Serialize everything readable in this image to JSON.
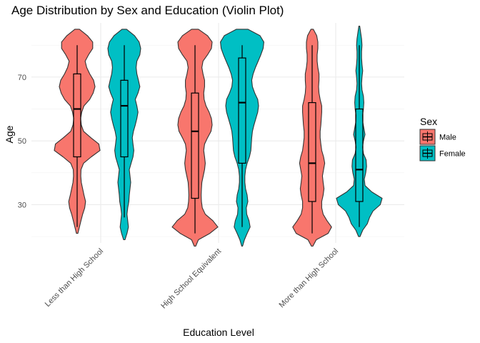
{
  "chart_data": {
    "type": "violin",
    "title": "Age Distribution by Sex and Education (Violin Plot)",
    "xlabel": "Education Level",
    "ylabel": "Age",
    "categories": [
      "Less than High School",
      "High School Equivalent",
      "More than High School"
    ],
    "y_ticks": [
      30,
      50,
      70
    ],
    "y_range": [
      18,
      87
    ],
    "grid": true,
    "legend": {
      "title": "Sex",
      "position": "right",
      "entries": [
        {
          "label": "Male",
          "color": "#F8766D"
        },
        {
          "label": "Female",
          "color": "#00BFC4"
        }
      ]
    },
    "series": [
      {
        "name": "Male",
        "color": "#F8766D",
        "violins": [
          {
            "category": "Less than High School",
            "box": {
              "min": 23,
              "q1": 45,
              "median": 60,
              "q3": 71,
              "max": 80
            },
            "density": [
              [
                21,
                0.03
              ],
              [
                23,
                0.1
              ],
              [
                25,
                0.17
              ],
              [
                27,
                0.24
              ],
              [
                29,
                0.33
              ],
              [
                31,
                0.37
              ],
              [
                33,
                0.3
              ],
              [
                35,
                0.24
              ],
              [
                37,
                0.18
              ],
              [
                39,
                0.16
              ],
              [
                41,
                0.17
              ],
              [
                43,
                0.28
              ],
              [
                45,
                0.62
              ],
              [
                47,
                1.0
              ],
              [
                49,
                0.95
              ],
              [
                51,
                0.6
              ],
              [
                53,
                0.28
              ],
              [
                55,
                0.18
              ],
              [
                57,
                0.15
              ],
              [
                59,
                0.2
              ],
              [
                61,
                0.3
              ],
              [
                63,
                0.55
              ],
              [
                65,
                0.7
              ],
              [
                67,
                0.78
              ],
              [
                69,
                0.72
              ],
              [
                71,
                0.55
              ],
              [
                73,
                0.42
              ],
              [
                75,
                0.35
              ],
              [
                77,
                0.5
              ],
              [
                79,
                0.68
              ],
              [
                81,
                0.68
              ],
              [
                83,
                0.45
              ],
              [
                85,
                0.1
              ]
            ]
          },
          {
            "category": "High School Equivalent",
            "box": {
              "min": 21,
              "q1": 32,
              "median": 53,
              "q3": 65,
              "max": 80
            },
            "density": [
              [
                17,
                0.03
              ],
              [
                19,
                0.15
              ],
              [
                21,
                0.65
              ],
              [
                23,
                1.0
              ],
              [
                25,
                0.78
              ],
              [
                27,
                0.45
              ],
              [
                29,
                0.32
              ],
              [
                31,
                0.28
              ],
              [
                33,
                0.27
              ],
              [
                35,
                0.28
              ],
              [
                37,
                0.3
              ],
              [
                39,
                0.36
              ],
              [
                41,
                0.42
              ],
              [
                43,
                0.45
              ],
              [
                45,
                0.42
              ],
              [
                47,
                0.38
              ],
              [
                49,
                0.42
              ],
              [
                51,
                0.55
              ],
              [
                53,
                0.7
              ],
              [
                55,
                0.75
              ],
              [
                57,
                0.72
              ],
              [
                59,
                0.62
              ],
              [
                61,
                0.48
              ],
              [
                63,
                0.4
              ],
              [
                65,
                0.38
              ],
              [
                67,
                0.42
              ],
              [
                69,
                0.42
              ],
              [
                71,
                0.35
              ],
              [
                73,
                0.3
              ],
              [
                75,
                0.35
              ],
              [
                77,
                0.55
              ],
              [
                79,
                0.72
              ],
              [
                81,
                0.75
              ],
              [
                83,
                0.55
              ],
              [
                85,
                0.15
              ]
            ]
          },
          {
            "category": "More than High School",
            "box": {
              "min": 21,
              "q1": 31,
              "median": 43,
              "q3": 62,
              "max": 80
            },
            "density": [
              [
                17,
                0.03
              ],
              [
                19,
                0.18
              ],
              [
                21,
                0.7
              ],
              [
                23,
                0.85
              ],
              [
                25,
                0.65
              ],
              [
                27,
                0.48
              ],
              [
                29,
                0.42
              ],
              [
                31,
                0.42
              ],
              [
                33,
                0.48
              ],
              [
                35,
                0.52
              ],
              [
                37,
                0.48
              ],
              [
                39,
                0.45
              ],
              [
                41,
                0.5
              ],
              [
                43,
                0.55
              ],
              [
                45,
                0.5
              ],
              [
                47,
                0.42
              ],
              [
                49,
                0.38
              ],
              [
                51,
                0.35
              ],
              [
                53,
                0.35
              ],
              [
                55,
                0.38
              ],
              [
                57,
                0.4
              ],
              [
                59,
                0.42
              ],
              [
                61,
                0.42
              ],
              [
                63,
                0.35
              ],
              [
                65,
                0.3
              ],
              [
                67,
                0.28
              ],
              [
                69,
                0.3
              ],
              [
                71,
                0.3
              ],
              [
                73,
                0.25
              ],
              [
                75,
                0.22
              ],
              [
                77,
                0.22
              ],
              [
                79,
                0.25
              ],
              [
                81,
                0.25
              ],
              [
                83,
                0.2
              ],
              [
                85,
                0.05
              ]
            ]
          }
        ]
      },
      {
        "name": "Female",
        "color": "#00BFC4",
        "violins": [
          {
            "category": "Less than High School",
            "box": {
              "min": 26,
              "q1": 45,
              "median": 61,
              "q3": 69,
              "max": 80
            },
            "density": [
              [
                19,
                0.03
              ],
              [
                21,
                0.12
              ],
              [
                23,
                0.18
              ],
              [
                25,
                0.15
              ],
              [
                27,
                0.12
              ],
              [
                29,
                0.15
              ],
              [
                31,
                0.2
              ],
              [
                33,
                0.22
              ],
              [
                35,
                0.25
              ],
              [
                37,
                0.28
              ],
              [
                39,
                0.25
              ],
              [
                41,
                0.22
              ],
              [
                43,
                0.3
              ],
              [
                45,
                0.38
              ],
              [
                47,
                0.42
              ],
              [
                49,
                0.38
              ],
              [
                51,
                0.35
              ],
              [
                53,
                0.4
              ],
              [
                55,
                0.48
              ],
              [
                57,
                0.55
              ],
              [
                59,
                0.6
              ],
              [
                61,
                0.55
              ],
              [
                63,
                0.48
              ],
              [
                65,
                0.6
              ],
              [
                67,
                0.68
              ],
              [
                69,
                0.62
              ],
              [
                71,
                0.55
              ],
              [
                73,
                0.52
              ],
              [
                75,
                0.55
              ],
              [
                77,
                0.68
              ],
              [
                79,
                0.72
              ],
              [
                81,
                0.65
              ],
              [
                83,
                0.45
              ],
              [
                85,
                0.1
              ]
            ]
          },
          {
            "category": "High School Equivalent",
            "box": {
              "min": 23,
              "q1": 43,
              "median": 62,
              "q3": 76,
              "max": 80
            },
            "density": [
              [
                17,
                0.02
              ],
              [
                19,
                0.1
              ],
              [
                21,
                0.22
              ],
              [
                23,
                0.35
              ],
              [
                25,
                0.3
              ],
              [
                27,
                0.2
              ],
              [
                29,
                0.18
              ],
              [
                31,
                0.25
              ],
              [
                33,
                0.22
              ],
              [
                35,
                0.15
              ],
              [
                37,
                0.12
              ],
              [
                39,
                0.12
              ],
              [
                41,
                0.15
              ],
              [
                43,
                0.22
              ],
              [
                45,
                0.32
              ],
              [
                47,
                0.38
              ],
              [
                49,
                0.4
              ],
              [
                51,
                0.42
              ],
              [
                53,
                0.45
              ],
              [
                55,
                0.52
              ],
              [
                57,
                0.6
              ],
              [
                59,
                0.68
              ],
              [
                61,
                0.72
              ],
              [
                63,
                0.68
              ],
              [
                65,
                0.55
              ],
              [
                67,
                0.45
              ],
              [
                69,
                0.42
              ],
              [
                71,
                0.48
              ],
              [
                73,
                0.58
              ],
              [
                75,
                0.7
              ],
              [
                77,
                0.82
              ],
              [
                79,
                0.92
              ],
              [
                81,
                0.95
              ],
              [
                83,
                0.78
              ],
              [
                85,
                0.25
              ]
            ]
          },
          {
            "category": "More than High School",
            "box": {
              "min": 23,
              "q1": 31,
              "median": 41,
              "q3": 60,
              "max": 80
            },
            "density": [
              [
                20,
                0.03
              ],
              [
                22,
                0.15
              ],
              [
                24,
                0.35
              ],
              [
                26,
                0.45
              ],
              [
                28,
                0.6
              ],
              [
                30,
                0.92
              ],
              [
                32,
                1.0
              ],
              [
                34,
                0.55
              ],
              [
                36,
                0.25
              ],
              [
                38,
                0.22
              ],
              [
                40,
                0.28
              ],
              [
                42,
                0.32
              ],
              [
                44,
                0.3
              ],
              [
                46,
                0.18
              ],
              [
                48,
                0.14
              ],
              [
                50,
                0.18
              ],
              [
                52,
                0.25
              ],
              [
                54,
                0.2
              ],
              [
                56,
                0.15
              ],
              [
                58,
                0.14
              ],
              [
                60,
                0.18
              ],
              [
                62,
                0.2
              ],
              [
                64,
                0.18
              ],
              [
                66,
                0.12
              ],
              [
                68,
                0.1
              ],
              [
                70,
                0.12
              ],
              [
                72,
                0.15
              ],
              [
                74,
                0.12
              ],
              [
                76,
                0.1
              ],
              [
                78,
                0.1
              ],
              [
                80,
                0.12
              ],
              [
                82,
                0.1
              ],
              [
                84,
                0.06
              ],
              [
                86,
                0.02
              ]
            ]
          }
        ]
      }
    ]
  }
}
